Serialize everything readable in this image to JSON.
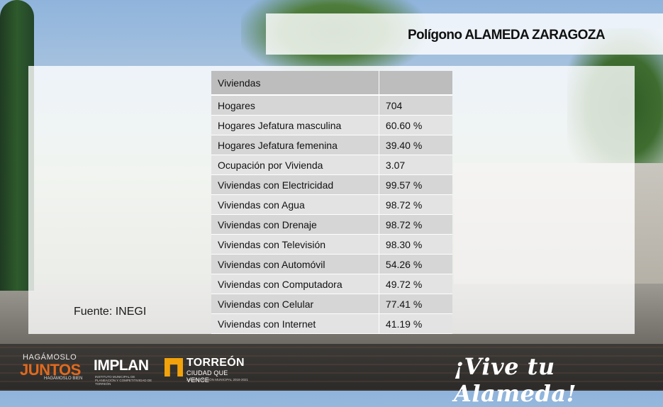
{
  "title": "Polígono ALAMEDA ZARAGOZA",
  "table": {
    "header": [
      "Viviendas",
      ""
    ],
    "rows": [
      {
        "label": "Hogares",
        "value": "704"
      },
      {
        "label": "Hogares Jefatura masculina",
        "value": "60.60 %"
      },
      {
        "label": "Hogares Jefatura femenina",
        "value": "39.40 %"
      },
      {
        "label": "Ocupación por Vivienda",
        "value": "3.07"
      },
      {
        "label": "Viviendas con Electricidad",
        "value": "99.57 %"
      },
      {
        "label": "Viviendas con Agua",
        "value": "98.72 %"
      },
      {
        "label": "Viviendas con Drenaje",
        "value": "98.72 %"
      },
      {
        "label": "Viviendas con Televisión",
        "value": "98.30 %"
      },
      {
        "label": "Viviendas con Automóvil",
        "value": "54.26 %"
      },
      {
        "label": "Viviendas con Computadora",
        "value": "49.72 %"
      },
      {
        "label": "Viviendas con Celular",
        "value": "77.41 %"
      },
      {
        "label": "Viviendas con Internet",
        "value": "41.19 %"
      }
    ]
  },
  "source": "Fuente: INEGI",
  "footer": {
    "logo_juntos": {
      "line1": "HAGÁMOSLO",
      "line2": "JUNTOS",
      "line3": "HAGÁMOSLO BIEN"
    },
    "logo_implan": {
      "name": "IMPLAN",
      "subtitle": "INSTITUTO MUNICIPAL DE PLANEACIÓN Y COMPETITIVIDAD DE TORREÓN"
    },
    "logo_torreon": {
      "name": "TORREÓN",
      "tagline": "CIUDAD QUE VENCE",
      "admin": "ADMINISTRACIÓN MUNICIPAL 2018-2021"
    },
    "slogan": "¡Vive tu Alameda!"
  },
  "colors": {
    "header_bg": "#bdbdbd",
    "row_odd": "#d6d6d6",
    "row_even": "#e3e3e3",
    "brand_orange": "#e06a1e",
    "torreon_yellow": "#f2a20a"
  }
}
